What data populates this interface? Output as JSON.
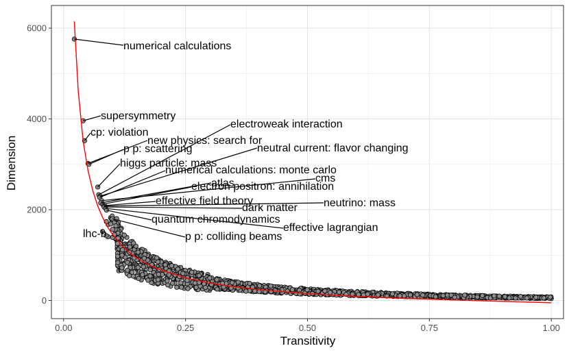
{
  "chart_data": {
    "type": "scatter",
    "title": "",
    "xlabel": "Transitivity",
    "ylabel": "Dimension",
    "xlim": [
      -0.025,
      1.025
    ],
    "ylim": [
      -400,
      6500
    ],
    "xticks": [
      0.0,
      0.25,
      0.5,
      0.75,
      1.0
    ],
    "xtick_labels": [
      "0.00",
      "0.25",
      "0.50",
      "0.75",
      "1.00"
    ],
    "yticks": [
      0,
      2000,
      4000,
      6000
    ],
    "ytick_labels": [
      "0",
      "2000",
      "4000",
      "6000"
    ],
    "grid": true,
    "point_color": "#8c8c8c",
    "point_edge_color": "#000000",
    "fit_color": "#ff0000",
    "fit_curve": {
      "x": [
        0.022,
        0.03,
        0.04,
        0.05,
        0.06,
        0.07,
        0.08,
        0.09,
        0.1,
        0.12,
        0.14,
        0.16,
        0.18,
        0.2,
        0.25,
        0.3,
        0.35,
        0.4,
        0.5,
        0.6,
        0.7,
        0.8,
        0.9,
        1.0
      ],
      "y": [
        6150,
        4620,
        3520,
        2860,
        2410,
        2080,
        1830,
        1620,
        1460,
        1200,
        1010,
        870,
        760,
        670,
        500,
        385,
        300,
        240,
        150,
        90,
        45,
        10,
        -20,
        -50
      ]
    },
    "labeled_points": [
      {
        "label": "numerical calculations",
        "x": 0.022,
        "y": 5760
      },
      {
        "label": "supersymmetry",
        "x": 0.04,
        "y": 3960
      },
      {
        "label": "cp: violation",
        "x": 0.043,
        "y": 3520
      },
      {
        "label": "new physics: search for",
        "x": 0.05,
        "y": 3020
      },
      {
        "label": "p p: scattering",
        "x": 0.052,
        "y": 3000
      },
      {
        "label": "higgs particle: mass",
        "x": 0.07,
        "y": 2500
      },
      {
        "label": "electroweak interaction",
        "x": 0.072,
        "y": 2330
      },
      {
        "label": "neutral current: flavor changing",
        "x": 0.075,
        "y": 2300
      },
      {
        "label": "numerical calculations: monte carlo",
        "x": 0.074,
        "y": 2270
      },
      {
        "label": "cms",
        "x": 0.078,
        "y": 2200
      },
      {
        "label": "atlas",
        "x": 0.076,
        "y": 2150
      },
      {
        "label": "electron positron: annihilation",
        "x": 0.08,
        "y": 2120
      },
      {
        "label": "effective field theory",
        "x": 0.082,
        "y": 2090
      },
      {
        "label": "neutrino: mass",
        "x": 0.085,
        "y": 2080
      },
      {
        "label": "dark matter",
        "x": 0.083,
        "y": 2060
      },
      {
        "label": "effective lagrangian",
        "x": 0.086,
        "y": 2030
      },
      {
        "label": "quantum chromodynamics",
        "x": 0.088,
        "y": 1990
      },
      {
        "label": "p p: colliding beams",
        "x": 0.1,
        "y": 1800
      },
      {
        "label": "lhc-b",
        "x": 0.08,
        "y": 1520
      }
    ]
  }
}
